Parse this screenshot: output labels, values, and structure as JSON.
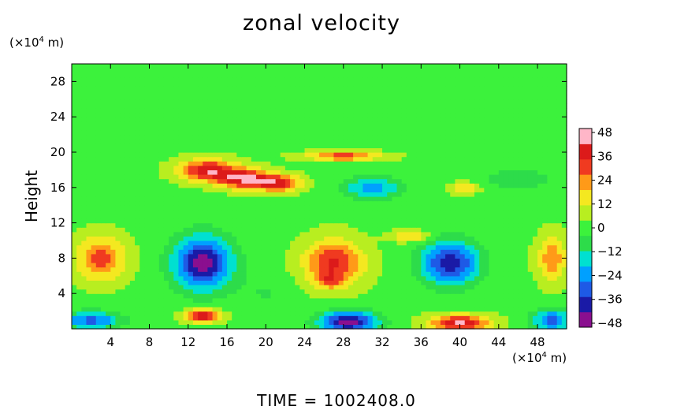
{
  "chart_data": {
    "type": "heatmap",
    "title": "zonal velocity",
    "ylabel": "Height",
    "x_unit": {
      "prefix": "(×10",
      "exponent": "4",
      "suffix": " m)"
    },
    "y_unit": {
      "prefix": "(×10",
      "exponent": "4",
      "suffix": " m)"
    },
    "xlim": [
      0,
      51
    ],
    "ylim": [
      0,
      30
    ],
    "x_ticks": [
      4,
      8,
      12,
      16,
      20,
      24,
      28,
      32,
      36,
      40,
      44,
      48
    ],
    "y_ticks": [
      4,
      8,
      12,
      16,
      20,
      24,
      28
    ],
    "colorbar": {
      "range": [
        -50,
        50
      ],
      "ticks": [
        48,
        36,
        24,
        12,
        0,
        -12,
        -24,
        -36,
        -48
      ],
      "colors": [
        "#8a0f8f",
        "#1a1aa6",
        "#1e5ae6",
        "#00a0ff",
        "#00e0d0",
        "#2ddc4a",
        "#3cf23c",
        "#b8ee20",
        "#f4e820",
        "#ff9a18",
        "#f03a20",
        "#dc1a1a",
        "#ffb6c8"
      ]
    },
    "background_value": 2,
    "features": [
      {
        "x": 14,
        "y": 18,
        "sx": 3.0,
        "sy": 1.2,
        "v": 38
      },
      {
        "x": 18,
        "y": 17,
        "sx": 2.8,
        "sy": 1.1,
        "v": 40
      },
      {
        "x": 21.5,
        "y": 16.5,
        "sx": 2.2,
        "sy": 0.9,
        "v": 32
      },
      {
        "x": 28,
        "y": 19.6,
        "sx": 4.0,
        "sy": 0.5,
        "v": 30
      },
      {
        "x": 40.5,
        "y": 16,
        "sx": 1.5,
        "sy": 0.6,
        "v": 20
      },
      {
        "x": 31,
        "y": 16,
        "sx": 3.0,
        "sy": 1.3,
        "v": -25
      },
      {
        "x": 46,
        "y": 17,
        "sx": 4.0,
        "sy": 1.5,
        "v": -10
      },
      {
        "x": 3,
        "y": 8,
        "sx": 2.5,
        "sy": 2.5,
        "v": 28
      },
      {
        "x": 13.5,
        "y": 7.5,
        "sx": 3.0,
        "sy": 3.0,
        "v": -48
      },
      {
        "x": 27,
        "y": 7.5,
        "sx": 3.0,
        "sy": 2.6,
        "v": 34
      },
      {
        "x": 26.5,
        "y": 5.5,
        "sx": 1.3,
        "sy": 0.9,
        "v": 14
      },
      {
        "x": 39,
        "y": 7.5,
        "sx": 3.0,
        "sy": 2.5,
        "v": -42
      },
      {
        "x": 49.5,
        "y": 8,
        "sx": 1.5,
        "sy": 2.5,
        "v": 24
      },
      {
        "x": 28.5,
        "y": 0.8,
        "sx": 3.0,
        "sy": 1.2,
        "v": -48
      },
      {
        "x": 40,
        "y": 0.7,
        "sx": 3.0,
        "sy": 0.9,
        "v": 42
      },
      {
        "x": 13.5,
        "y": 1.5,
        "sx": 1.8,
        "sy": 0.7,
        "v": 44
      },
      {
        "x": 2,
        "y": 1.0,
        "sx": 3.0,
        "sy": 1.0,
        "v": -32
      },
      {
        "x": 49.5,
        "y": 1.0,
        "sx": 2.0,
        "sy": 1.2,
        "v": -32
      },
      {
        "x": 35,
        "y": 10.5,
        "sx": 2.0,
        "sy": 0.6,
        "v": 20
      },
      {
        "x": 20,
        "y": 4,
        "sx": 3.0,
        "sy": 2.0,
        "v": -6
      }
    ]
  },
  "time_label": "TIME",
  "time_sep": "=",
  "time_value": "1002408.0"
}
